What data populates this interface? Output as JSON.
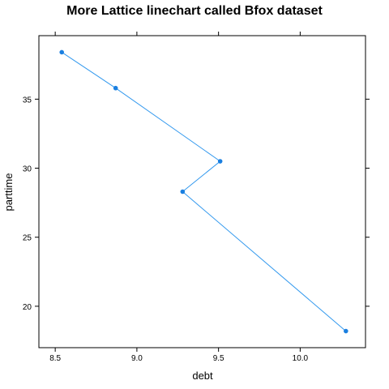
{
  "chart_data": {
    "type": "line",
    "title": "More Lattice linechart called Bfox dataset",
    "xlabel": "debt",
    "ylabel": "parttime",
    "xlim": [
      8.4,
      10.4
    ],
    "ylim": [
      17,
      39.6
    ],
    "x_ticks": [
      8.5,
      9.0,
      9.5,
      10.0
    ],
    "x_tick_labels": [
      "8.5",
      "9.0",
      "9.5",
      "10.0"
    ],
    "y_ticks": [
      20,
      25,
      30,
      35
    ],
    "y_tick_labels": [
      "20",
      "25",
      "30",
      "35"
    ],
    "grid": false,
    "series": [
      {
        "x": [
          8.54,
          8.87,
          9.51,
          9.28,
          10.28
        ],
        "y": [
          38.4,
          35.8,
          30.5,
          28.3,
          18.2
        ],
        "color": "#3399ee"
      }
    ]
  }
}
